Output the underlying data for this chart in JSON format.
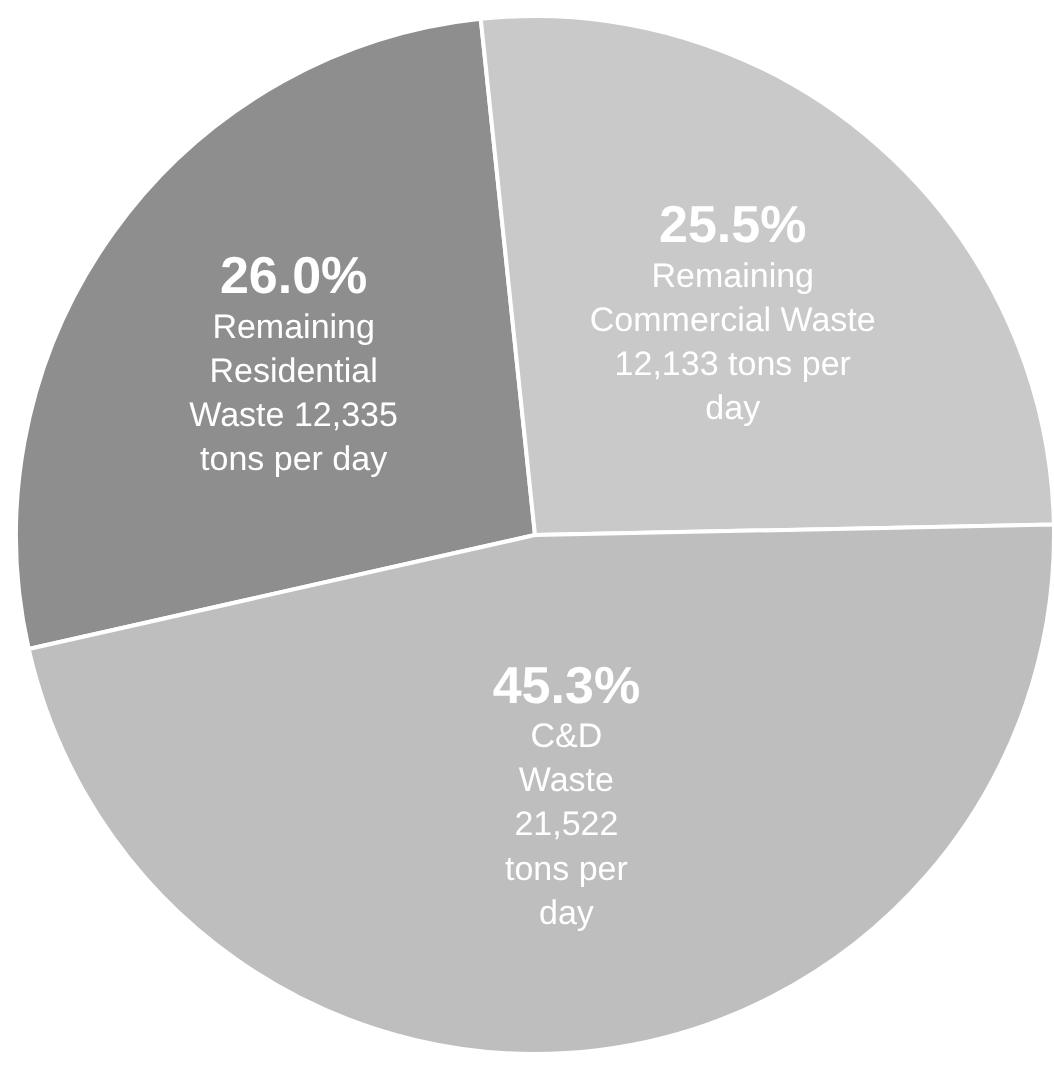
{
  "chart_data": {
    "type": "pie",
    "categories": [
      "Remaining Residential Waste 12,335 tons per day",
      "Remaining Commercial Waste 12,133 tons per day",
      "C&D Waste 21,522 tons per day"
    ],
    "values": [
      26.0,
      25.5,
      45.3
    ],
    "value_labels": [
      "26.0%",
      "25.5%",
      "45.3%"
    ],
    "colors": [
      "#8e8e8e",
      "#c9c9c9",
      "#bebebe"
    ]
  }
}
